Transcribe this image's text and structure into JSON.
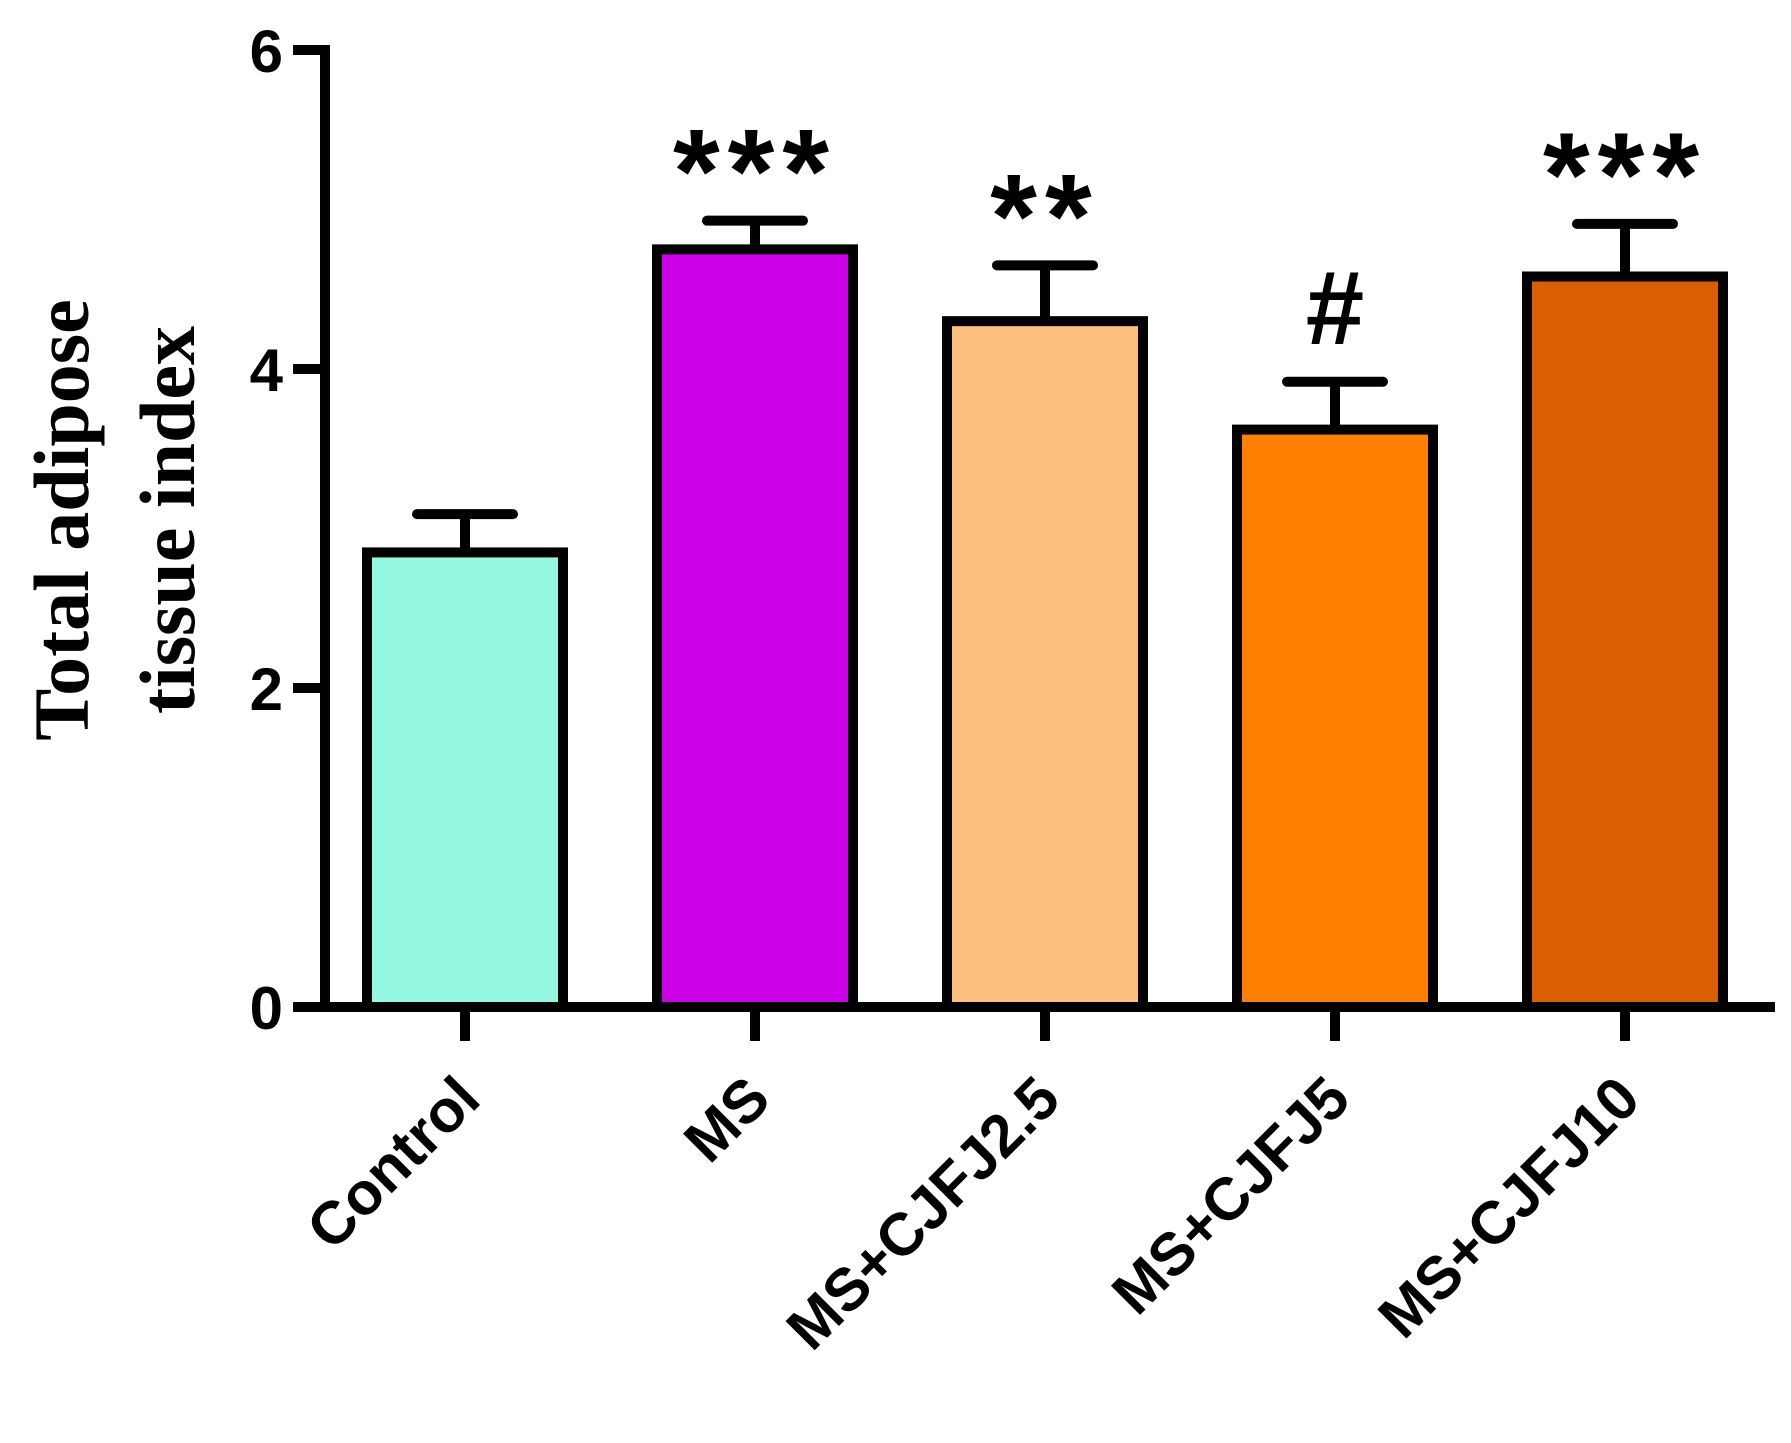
{
  "chart_data": {
    "type": "bar",
    "categories": [
      "Control",
      "MS",
      "MS+CJFJ2.5",
      "MS+CJFJ5",
      "MS+CJFJ10"
    ],
    "values": [
      2.85,
      4.75,
      4.3,
      3.62,
      4.58
    ],
    "errors": [
      0.24,
      0.18,
      0.35,
      0.3,
      0.33
    ],
    "annotations": [
      "",
      "***",
      "**",
      "#",
      "***"
    ],
    "colors": [
      "#94f7df",
      "#cc00e6",
      "#fdbf80",
      "#ff8000",
      "#d95f02"
    ],
    "ylabel_lines": [
      "Total adipose",
      "tissue index"
    ],
    "xlabel": "",
    "ylim": [
      0,
      6
    ],
    "yticks": [
      0,
      2,
      4,
      6
    ],
    "ytick_labels": [
      "0",
      "2",
      "4",
      "6"
    ],
    "grid": false
  }
}
